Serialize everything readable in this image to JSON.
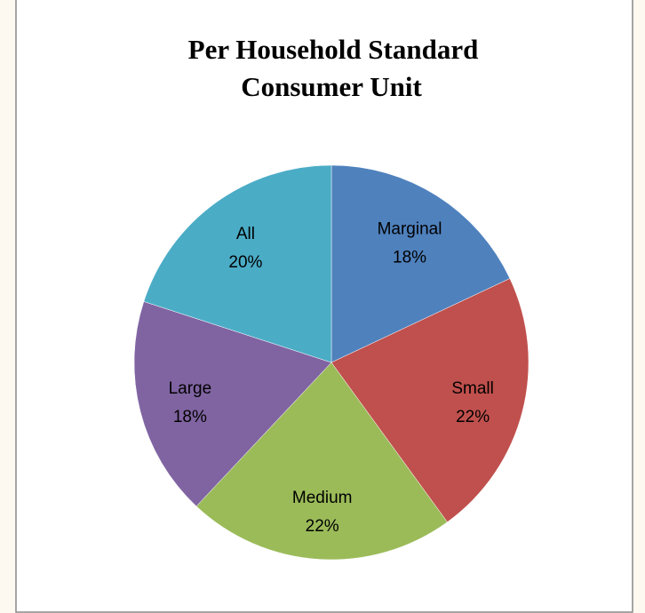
{
  "chart_data": {
    "type": "pie",
    "title_lines": [
      "Per  Household Standard",
      "Consumer Unit"
    ],
    "categories": [
      "Marginal",
      "Small",
      "Medium",
      "Large",
      "All"
    ],
    "values": [
      18,
      22,
      22,
      18,
      20
    ],
    "value_labels": [
      "18%",
      "22%",
      "22%",
      "18%",
      "20%"
    ],
    "colors": [
      "#4f81bd",
      "#c0504d",
      "#9bbb59",
      "#8064a2",
      "#4bacc6"
    ]
  }
}
